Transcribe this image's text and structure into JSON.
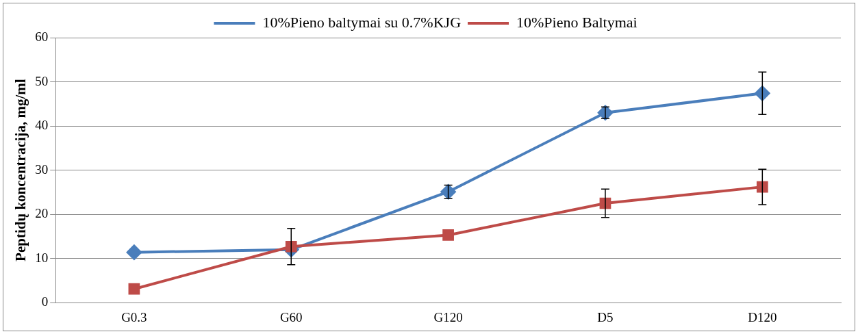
{
  "chart_data": {
    "type": "line",
    "ylabel": "Peptidų koncentracija, mg/ml",
    "categories": [
      "G0.3",
      "G60",
      "G120",
      "D5",
      "D120"
    ],
    "series": [
      {
        "name": "10%Pieno baltymai su 0.7%KJG",
        "color": "#4a7ebb",
        "marker": "diamond",
        "values": [
          11.4,
          12.0,
          25.1,
          43.0,
          47.4
        ],
        "errors": [
          null,
          null,
          1.5,
          1.3,
          4.8
        ]
      },
      {
        "name": "10%Pieno Baltymai",
        "color": "#be4b48",
        "marker": "square",
        "values": [
          3.1,
          12.7,
          15.3,
          22.5,
          26.2
        ],
        "errors": [
          null,
          4.1,
          null,
          3.2,
          4.0
        ]
      }
    ],
    "ylim": [
      0,
      60
    ],
    "yticks": [
      0,
      10,
      20,
      30,
      40,
      50,
      60
    ],
    "grid": "y",
    "legend": "top"
  }
}
